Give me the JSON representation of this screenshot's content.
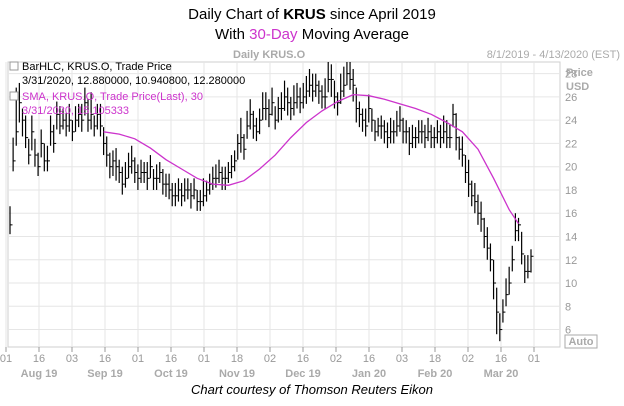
{
  "header": {
    "title_prefix": "Daily Chart of ",
    "title_ticker": "KRUS",
    "title_suffix": " since April 2019",
    "subtitle_prefix": "With ",
    "subtitle_accent": "30-Day",
    "subtitle_suffix": " Moving Average"
  },
  "caption": "Chart courtesy of Thomson Reuters Eikon",
  "colors": {
    "bars": "#000000",
    "sma": "#cc33cc",
    "grid": "#e6e6e6",
    "axis_text": "#aaaaaa",
    "accent": "#cc33cc"
  },
  "chart_data": {
    "type": "line",
    "panel_title": "Daily KRUS.O",
    "date_range_label": "8/1/2019 - 4/13/2020 (EST)",
    "y_axis_label_1": "Price",
    "y_axis_label_2": "USD",
    "auto_label": "Auto",
    "ylim": [
      4.5,
      29
    ],
    "y_ticks": [
      "6",
      "8",
      "10",
      "12",
      "14",
      "16",
      "18",
      "20",
      "22",
      "24",
      "26",
      "28"
    ],
    "grid": true,
    "x_day_ticks": [
      "01",
      "16",
      "03",
      "16",
      "01",
      "16",
      "01",
      "18",
      "02",
      "16",
      "02",
      "16",
      "03",
      "18",
      "02",
      "16",
      "01"
    ],
    "x_month_labels": [
      "Aug 19",
      "Sep 19",
      "Oct 19",
      "Nov 19",
      "Dec 19",
      "Jan 20",
      "Feb 20",
      "Mar 20"
    ],
    "legend": [
      {
        "label": "BarHLC, KRUS.O, Trade Price",
        "values": "3/31/2020, 12.880000, 10.940800, 12.280000"
      },
      {
        "label": "SMA, KRUS.O, Trade Price(Last),  30",
        "values": "3/31/2020, 15.105333"
      }
    ],
    "series": [
      {
        "name": "BarHLC, KRUS.O, Trade Price",
        "kind": "hlc",
        "close": [
          15.0,
          20.5,
          23.0,
          25.5,
          24.0,
          22.5,
          21.0,
          23.0,
          21.0,
          20.0,
          22.0,
          20.5,
          20.5,
          23.0,
          22.0,
          24.5,
          23.5,
          24.0,
          23.5,
          24.0,
          23.0,
          24.0,
          24.5,
          24.0,
          25.5,
          24.0,
          24.5,
          23.5,
          24.5,
          23.5,
          22.0,
          21.0,
          20.0,
          20.5,
          20.0,
          19.5,
          18.5,
          19.0,
          20.0,
          20.5,
          19.5,
          19.0,
          19.5,
          19.5,
          19.0,
          20.0,
          19.0,
          19.0,
          19.5,
          18.5,
          18.5,
          18.0,
          17.5,
          17.5,
          18.0,
          17.5,
          18.0,
          18.0,
          17.5,
          18.0,
          17.0,
          17.0,
          17.5,
          18.0,
          18.5,
          19.0,
          19.0,
          19.5,
          19.0,
          19.0,
          19.5,
          20.0,
          20.5,
          22.0,
          22.5,
          21.5,
          23.5,
          24.5,
          23.5,
          23.0,
          24.0,
          25.0,
          25.0,
          24.5,
          25.5,
          24.0,
          25.0,
          25.0,
          26.0,
          25.5,
          25.0,
          25.5,
          26.0,
          25.5,
          26.0,
          26.5,
          27.0,
          26.5,
          27.0,
          26.5,
          26.0,
          26.0,
          27.5,
          27.5,
          26.0,
          25.5,
          26.5,
          27.0,
          28.0,
          27.5,
          27.0,
          25.0,
          24.5,
          24.0,
          23.5,
          25.0,
          24.0,
          23.0,
          23.5,
          23.5,
          23.0,
          22.5,
          23.0,
          23.0,
          23.5,
          24.0,
          23.0,
          23.0,
          22.0,
          22.5,
          22.5,
          23.0,
          23.0,
          22.5,
          23.0,
          22.5,
          22.5,
          23.0,
          22.5,
          23.0,
          22.5,
          22.5,
          24.5,
          22.5,
          21.5,
          21.0,
          19.5,
          18.5,
          17.5,
          17.0,
          16.0,
          15.5,
          14.0,
          13.0,
          12.0,
          10.0,
          7.5,
          6.0,
          7.5,
          9.0,
          10.0,
          12.0,
          14.5,
          15.0,
          12.5,
          11.0,
          11.0,
          12.3
        ],
        "high": [
          16.6,
          22.5,
          26.8,
          27.2,
          25.0,
          24.4,
          22.4,
          24.4,
          22.4,
          21.2,
          23.2,
          22.0,
          21.8,
          24.4,
          23.6,
          25.6,
          25.2,
          25.0,
          24.6,
          25.4,
          24.0,
          25.2,
          25.4,
          25.4,
          26.8,
          25.8,
          26.4,
          24.4,
          25.4,
          25.4,
          23.4,
          22.6,
          21.2,
          21.4,
          21.6,
          20.6,
          20.0,
          20.4,
          21.2,
          21.8,
          20.8,
          20.2,
          20.6,
          20.4,
          20.4,
          21.0,
          19.8,
          20.2,
          20.4,
          19.8,
          19.4,
          19.4,
          18.6,
          18.6,
          19.0,
          18.6,
          19.0,
          19.0,
          18.6,
          19.0,
          18.0,
          18.0,
          19.0,
          18.8,
          19.4,
          20.0,
          20.2,
          20.6,
          20.0,
          20.0,
          20.4,
          21.0,
          21.4,
          22.8,
          24.2,
          22.8,
          24.8,
          25.8,
          24.8,
          24.2,
          25.0,
          26.4,
          26.4,
          25.8,
          26.8,
          25.2,
          26.0,
          26.4,
          27.4,
          26.8,
          26.0,
          27.0,
          27.2,
          26.8,
          27.2,
          27.8,
          28.4,
          28.0,
          28.0,
          27.4,
          27.0,
          27.6,
          29.0,
          28.8,
          27.4,
          26.4,
          28.0,
          28.6,
          29.0,
          29.0,
          28.4,
          26.8,
          25.6,
          25.0,
          25.0,
          26.2,
          25.0,
          24.0,
          24.2,
          24.4,
          24.0,
          23.8,
          24.2,
          24.0,
          24.8,
          25.2,
          24.2,
          24.0,
          23.4,
          23.6,
          23.4,
          24.0,
          24.0,
          23.6,
          24.2,
          23.6,
          23.4,
          24.0,
          23.6,
          24.4,
          24.0,
          23.6,
          25.4,
          24.6,
          22.6,
          22.6,
          21.0,
          20.6,
          18.8,
          18.6,
          17.6,
          17.0,
          15.6,
          14.8,
          13.4,
          12.0,
          9.6,
          7.4,
          8.6,
          10.4,
          11.4,
          13.2,
          16.0,
          15.6,
          14.4,
          12.4,
          12.4,
          12.9
        ],
        "low": [
          14.2,
          19.6,
          21.8,
          23.8,
          22.6,
          21.6,
          20.2,
          21.4,
          20.0,
          19.2,
          20.8,
          19.6,
          19.6,
          21.8,
          21.2,
          23.2,
          22.8,
          23.2,
          22.6,
          23.0,
          22.2,
          23.0,
          23.4,
          23.0,
          24.4,
          23.0,
          23.2,
          22.6,
          23.2,
          22.6,
          21.0,
          20.0,
          19.0,
          19.2,
          18.8,
          18.6,
          17.6,
          18.2,
          19.0,
          19.4,
          18.6,
          18.0,
          18.6,
          18.6,
          18.0,
          19.0,
          18.0,
          18.0,
          18.6,
          17.6,
          17.4,
          17.2,
          16.6,
          16.6,
          17.0,
          16.6,
          17.0,
          17.2,
          16.4,
          17.2,
          16.2,
          16.2,
          16.6,
          17.0,
          17.6,
          18.0,
          18.2,
          18.6,
          18.0,
          18.0,
          18.6,
          19.0,
          19.6,
          20.6,
          21.2,
          20.6,
          22.4,
          23.2,
          22.4,
          22.2,
          22.8,
          24.0,
          24.0,
          23.4,
          24.4,
          23.2,
          23.8,
          24.0,
          24.8,
          24.4,
          24.0,
          24.4,
          25.0,
          24.6,
          25.0,
          25.4,
          26.0,
          25.6,
          26.0,
          25.4,
          25.0,
          25.0,
          26.4,
          26.0,
          25.0,
          24.4,
          25.4,
          26.0,
          27.0,
          26.6,
          25.6,
          23.8,
          23.4,
          23.0,
          22.6,
          23.8,
          23.0,
          22.2,
          22.6,
          22.4,
          22.0,
          21.6,
          22.0,
          22.0,
          22.6,
          23.0,
          22.0,
          22.0,
          21.0,
          21.6,
          21.6,
          22.0,
          22.0,
          21.6,
          22.2,
          21.6,
          21.6,
          22.0,
          21.6,
          22.0,
          21.6,
          21.6,
          23.4,
          21.4,
          20.6,
          20.0,
          18.6,
          17.4,
          16.6,
          16.0,
          15.0,
          14.4,
          13.0,
          12.0,
          11.0,
          8.6,
          5.6,
          5.0,
          6.6,
          8.0,
          9.0,
          11.0,
          13.6,
          13.6,
          11.6,
          10.0,
          10.4,
          10.9
        ]
      },
      {
        "name": "SMA, KRUS.O, Trade Price(Last),  30",
        "kind": "line",
        "x_index": [
          30,
          35,
          40,
          45,
          50,
          55,
          60,
          65,
          70,
          75,
          80,
          85,
          90,
          95,
          100,
          105,
          110,
          115,
          120,
          125,
          130,
          135,
          140,
          145,
          150,
          155,
          160,
          163
        ],
        "values": [
          23.0,
          22.8,
          22.4,
          21.6,
          20.6,
          19.8,
          19.0,
          18.5,
          18.4,
          18.8,
          19.8,
          21.0,
          22.5,
          23.8,
          24.8,
          25.6,
          26.2,
          26.1,
          25.8,
          25.4,
          25.0,
          24.5,
          23.8,
          23.0,
          21.5,
          19.0,
          16.3,
          15.1
        ]
      }
    ]
  }
}
